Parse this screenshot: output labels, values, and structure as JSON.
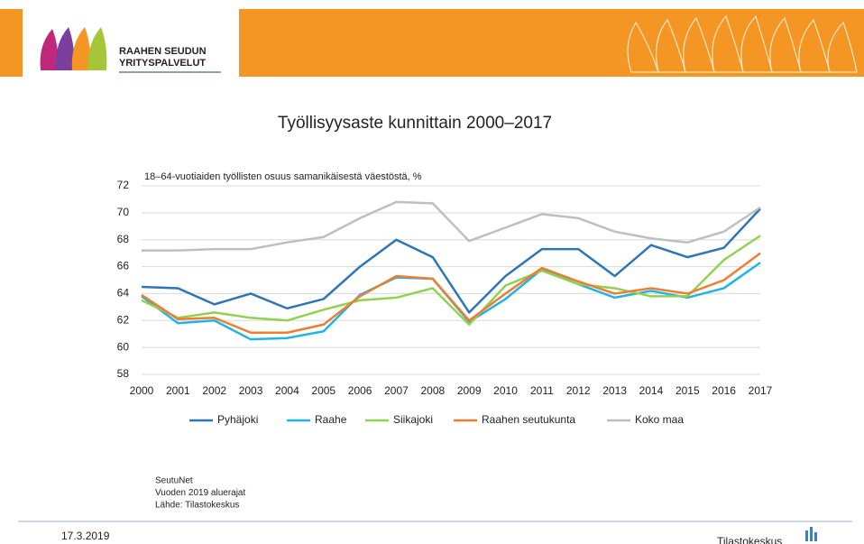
{
  "header": {
    "logo_lines": [
      "RAAHEN SEUDUN",
      "YRITYSPALVELUT"
    ]
  },
  "chart_data": {
    "type": "line",
    "title": "Työllisyysaste kunnittain 2000–2017",
    "subtitle": "18–64-vuotiaiden työllisten osuus samanikäisestä väestöstä, %",
    "categories": [
      "2000",
      "2001",
      "2002",
      "2003",
      "2004",
      "2005",
      "2006",
      "2007",
      "2008",
      "2009",
      "2010",
      "2011",
      "2012",
      "2013",
      "2014",
      "2015",
      "2016",
      "2017"
    ],
    "series": [
      {
        "name": "Pyhäjoki",
        "color": "#2e75b6",
        "values": [
          64.5,
          64.4,
          63.2,
          64.0,
          62.9,
          63.6,
          66.0,
          68.0,
          66.7,
          62.6,
          65.3,
          67.3,
          67.3,
          65.3,
          67.6,
          66.7,
          67.4,
          70.3
        ]
      },
      {
        "name": "Raahe",
        "color": "#1fb4e6",
        "values": [
          63.8,
          61.8,
          62.0,
          60.6,
          60.7,
          61.2,
          63.9,
          65.2,
          65.1,
          61.9,
          63.6,
          65.8,
          64.7,
          63.7,
          64.2,
          63.7,
          64.4,
          66.3
        ]
      },
      {
        "name": "Siikajoki",
        "color": "#92d050",
        "values": [
          63.5,
          62.2,
          62.6,
          62.2,
          62.0,
          62.8,
          63.5,
          63.7,
          64.4,
          61.7,
          64.6,
          65.7,
          64.7,
          64.4,
          63.8,
          63.8,
          66.5,
          68.3
        ]
      },
      {
        "name": "Raahen seutukunta",
        "color": "#ed7d31",
        "values": [
          63.9,
          62.1,
          62.2,
          61.1,
          61.1,
          61.7,
          63.8,
          65.3,
          65.1,
          62.0,
          64.0,
          65.9,
          64.9,
          64.0,
          64.4,
          64.0,
          65.0,
          67.0
        ]
      },
      {
        "name": "Koko maa",
        "color": "#bfbfbf",
        "values": [
          67.2,
          67.2,
          67.3,
          67.3,
          67.8,
          68.2,
          69.6,
          70.8,
          70.7,
          67.9,
          68.9,
          69.9,
          69.6,
          68.6,
          68.1,
          67.8,
          68.6,
          70.4
        ]
      }
    ],
    "ylim": [
      58,
      72
    ],
    "yticks": [
      58,
      60,
      62,
      64,
      66,
      68,
      70,
      72
    ],
    "grid": true,
    "legend": "bottom"
  },
  "source": [
    "SeutuNet",
    "Vuoden 2019 aluerajat",
    "Lähde: Tilastokeskus"
  ],
  "footer": {
    "date": "17.3.2019",
    "brand": "Tilastokeskus"
  }
}
